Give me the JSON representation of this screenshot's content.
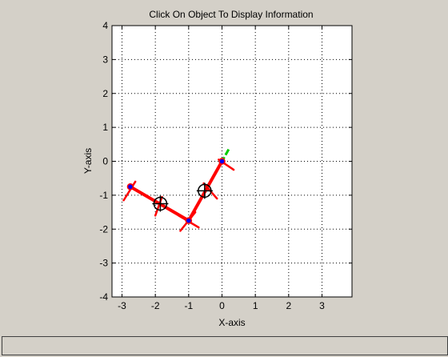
{
  "plot": {
    "title": "Click On Object To Display Information",
    "xlabel": "X-axis",
    "ylabel": "Y-axis"
  },
  "status": {
    "text": ""
  },
  "colors": {
    "background": "#d4d0c8",
    "axes_background": "#ffffff",
    "link": "#ff0000",
    "axis_line": "#00cc00",
    "joint": "#0000ff",
    "com_marker": "#000000"
  },
  "chart_data": {
    "type": "scatter",
    "xlim": [
      -3.3,
      3.9
    ],
    "ylim": [
      -4,
      4
    ],
    "xticks": [
      -3,
      -2,
      -1,
      0,
      1,
      2,
      3
    ],
    "yticks": [
      -4,
      -3,
      -2,
      -1,
      0,
      1,
      2,
      3,
      4
    ],
    "xtick_labels": [
      "-3",
      "-2",
      "-1",
      "0",
      "1",
      "2",
      "3"
    ],
    "ytick_labels": [
      "-4",
      "-3",
      "-2",
      "-1",
      "0",
      "1",
      "2",
      "3",
      "4"
    ],
    "grid": true,
    "joints": [
      {
        "x": 0.0,
        "y": 0.0
      },
      {
        "x": -1.0,
        "y": -1.75
      },
      {
        "x": -2.75,
        "y": -0.75
      }
    ],
    "centers_of_mass": [
      {
        "x": -0.52,
        "y": -0.87
      },
      {
        "x": -1.85,
        "y": -1.25
      }
    ],
    "links": [
      {
        "from": 0,
        "to": 1
      },
      {
        "from": 1,
        "to": 2
      }
    ],
    "axis_extensions": [
      {
        "x1": 0.2,
        "y1": 0.35,
        "x2": -0.5,
        "y2": -0.875
      },
      {
        "x1": -1.0,
        "y1": -1.75,
        "x2": -2.75,
        "y2": -0.75
      }
    ],
    "end_ticks": [
      {
        "x1": -0.1,
        "y1": 0.05,
        "x2": 0.35,
        "y2": -0.25
      },
      {
        "x1": -0.55,
        "y1": -0.65,
        "x2": -0.15,
        "y2": -1.1
      },
      {
        "x1": -1.25,
        "y1": -2.05,
        "x2": -0.8,
        "y2": -1.5
      },
      {
        "x1": -1.3,
        "y1": -1.6,
        "x2": -0.7,
        "y2": -1.95
      },
      {
        "x1": -2.0,
        "y1": -1.6,
        "x2": -1.8,
        "y2": -1.05
      },
      {
        "x1": -2.6,
        "y1": -0.6,
        "x2": -2.95,
        "y2": -1.15
      }
    ]
  }
}
